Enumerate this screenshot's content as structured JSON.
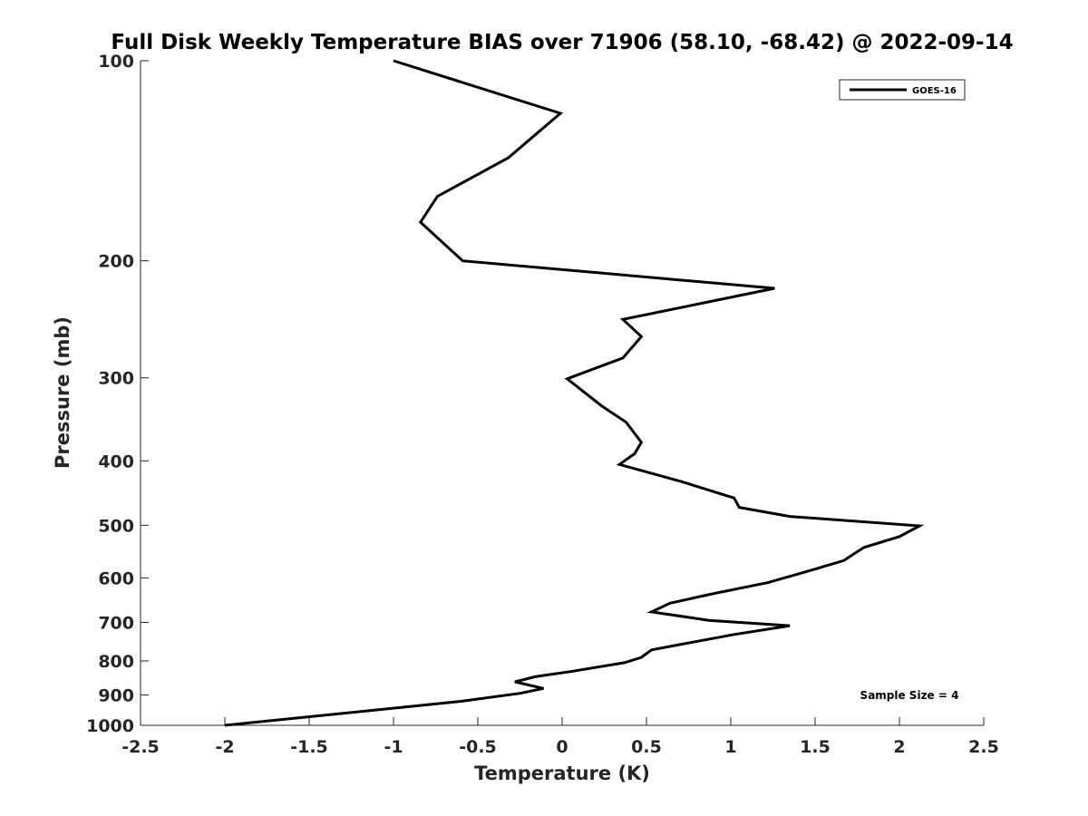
{
  "chart_data": {
    "type": "line",
    "title": "Full Disk Weekly Temperature BIAS over 71906 (58.10, -68.42) @ 2022-09-14",
    "xlabel": "Temperature (K)",
    "ylabel": "Pressure (mb)",
    "xlim": [
      -2.5,
      2.5
    ],
    "ylim": [
      100,
      1000
    ],
    "y_scale": "log",
    "y_reversed": true,
    "xticks": [
      -2.5,
      -2,
      -1.5,
      -1,
      -0.5,
      0,
      0.5,
      1,
      1.5,
      2,
      2.5
    ],
    "xtick_labels": [
      "-2.5",
      "-2",
      "-1.5",
      "-1",
      "-0.5",
      "0",
      "0.5",
      "1",
      "1.5",
      "2",
      "2.5"
    ],
    "yticks": [
      100,
      200,
      300,
      400,
      500,
      600,
      700,
      800,
      900,
      1000
    ],
    "ytick_labels": [
      "100",
      "200",
      "300",
      "400",
      "500",
      "600",
      "700",
      "800",
      "900",
      "1000"
    ],
    "grid": false,
    "legend_position": "top-right",
    "series": [
      {
        "name": "GOES-16",
        "color": "#000000",
        "x": [
          -1.0,
          -0.01,
          -0.32,
          -0.74,
          -0.84,
          -0.59,
          1.26,
          0.36,
          0.47,
          0.36,
          0.03,
          0.23,
          0.38,
          0.47,
          0.43,
          0.34,
          0.71,
          1.02,
          1.05,
          1.35,
          2.12,
          2.0,
          1.79,
          1.67,
          1.47,
          1.22,
          0.88,
          0.64,
          0.53,
          0.87,
          1.35,
          1.02,
          0.71,
          0.53,
          0.47,
          0.37,
          0.05,
          -0.16,
          -0.28,
          -0.11,
          -0.25,
          -0.6,
          -2.0
        ],
        "y": [
          100,
          120,
          140,
          160,
          175,
          200,
          220,
          245,
          260,
          280,
          301,
          330,
          350,
          375,
          390,
          405,
          430,
          455,
          470,
          485,
          501,
          520,
          540,
          565,
          585,
          610,
          635,
          655,
          675,
          695,
          708,
          730,
          755,
          770,
          790,
          805,
          830,
          845,
          860,
          880,
          895,
          920,
          1000
        ]
      }
    ],
    "annotations": [
      "Sample Size = 4"
    ]
  }
}
